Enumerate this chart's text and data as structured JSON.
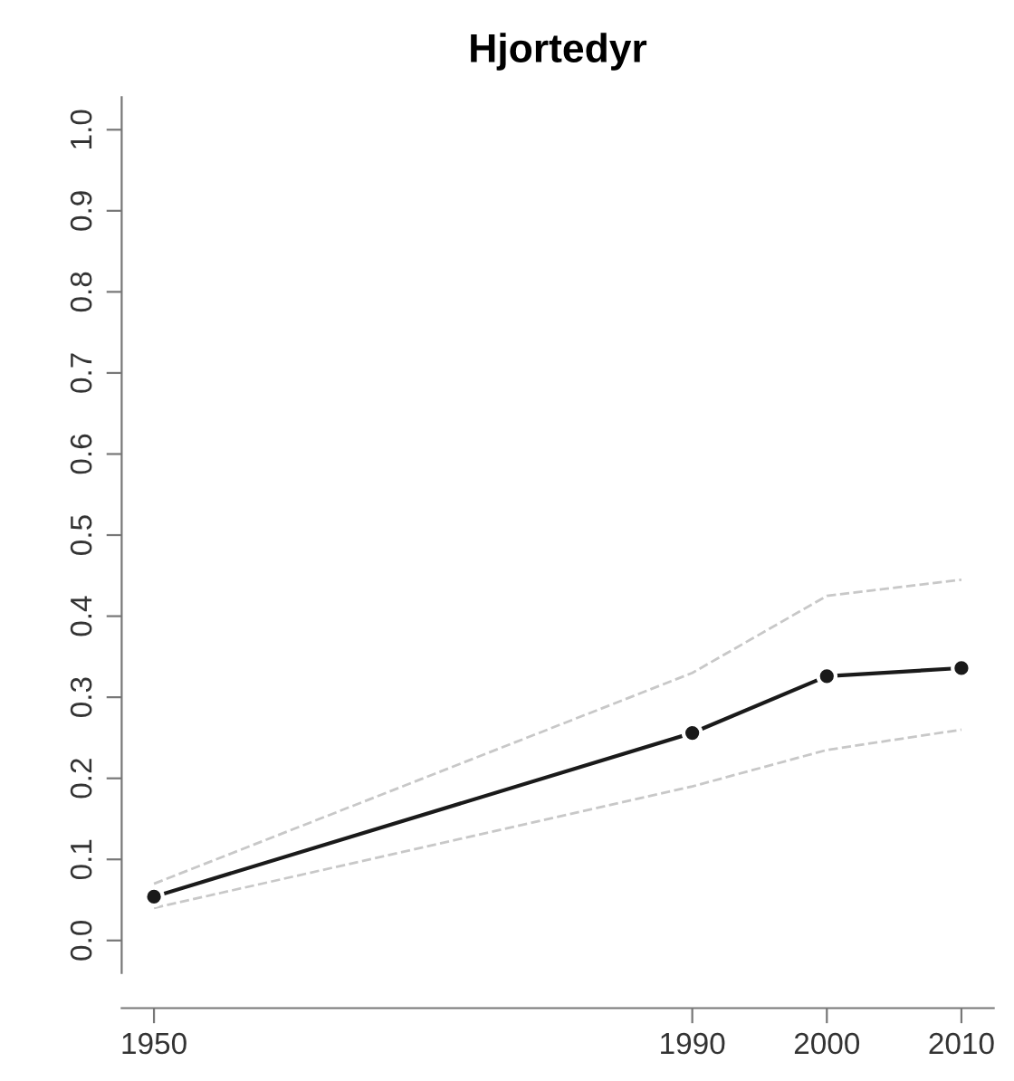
{
  "chart_data": {
    "type": "line",
    "title": "Hjortedyr",
    "x": [
      1950,
      1990,
      2000,
      2010
    ],
    "series": [
      {
        "color": "#c8c8c8",
        "values": [
          0.07,
          0.33,
          0.425,
          0.445
        ],
        "line_style": "dashed",
        "marker": "none"
      },
      {
        "color": "#c8c8c8",
        "values": [
          0.04,
          0.19,
          0.235,
          0.26
        ],
        "line_style": "dashed",
        "marker": "none"
      },
      {
        "color": "#1a1a1a",
        "values": [
          0.054,
          0.256,
          0.326,
          0.336
        ]
      }
    ],
    "xlim": [
      1947.6,
      2012.4
    ],
    "ylim": [
      -0.04,
      1.04
    ],
    "xticks": [
      1950,
      1990,
      2000,
      2010
    ],
    "yticks": [
      {
        "value": 0,
        "label": "0.0"
      },
      0.1,
      0.2,
      0.3,
      0.4,
      0.5,
      0.6,
      0.7,
      0.8,
      0.9,
      {
        "value": 1,
        "label": "1.0"
      }
    ],
    "marker": "circle",
    "line_style": "solid",
    "grid": false,
    "legend": false
  }
}
